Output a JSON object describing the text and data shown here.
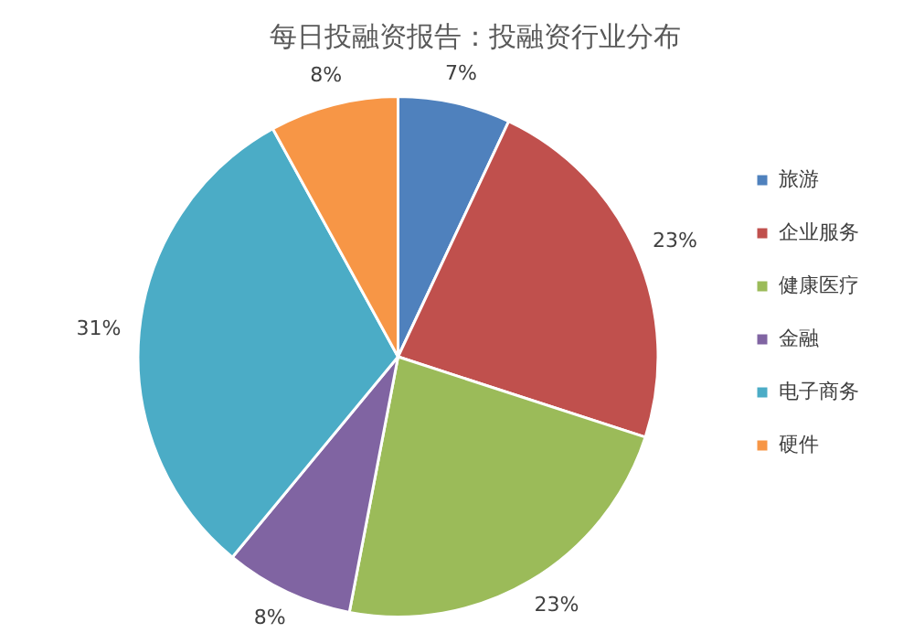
{
  "chart_data": {
    "type": "pie",
    "title": "每日投融资报告：投融资行业分布",
    "categories": [
      "旅游",
      "企业服务",
      "健康医疗",
      "金融",
      "电子商务",
      "硬件"
    ],
    "values": [
      7,
      23,
      23,
      8,
      31,
      8
    ],
    "value_labels": [
      "7%",
      "23%",
      "23%",
      "8%",
      "31%",
      "8%"
    ],
    "colors": [
      "#4f81bd",
      "#c0504d",
      "#9bbb59",
      "#8064a2",
      "#4bacc6",
      "#f79646"
    ],
    "legend": "right"
  }
}
